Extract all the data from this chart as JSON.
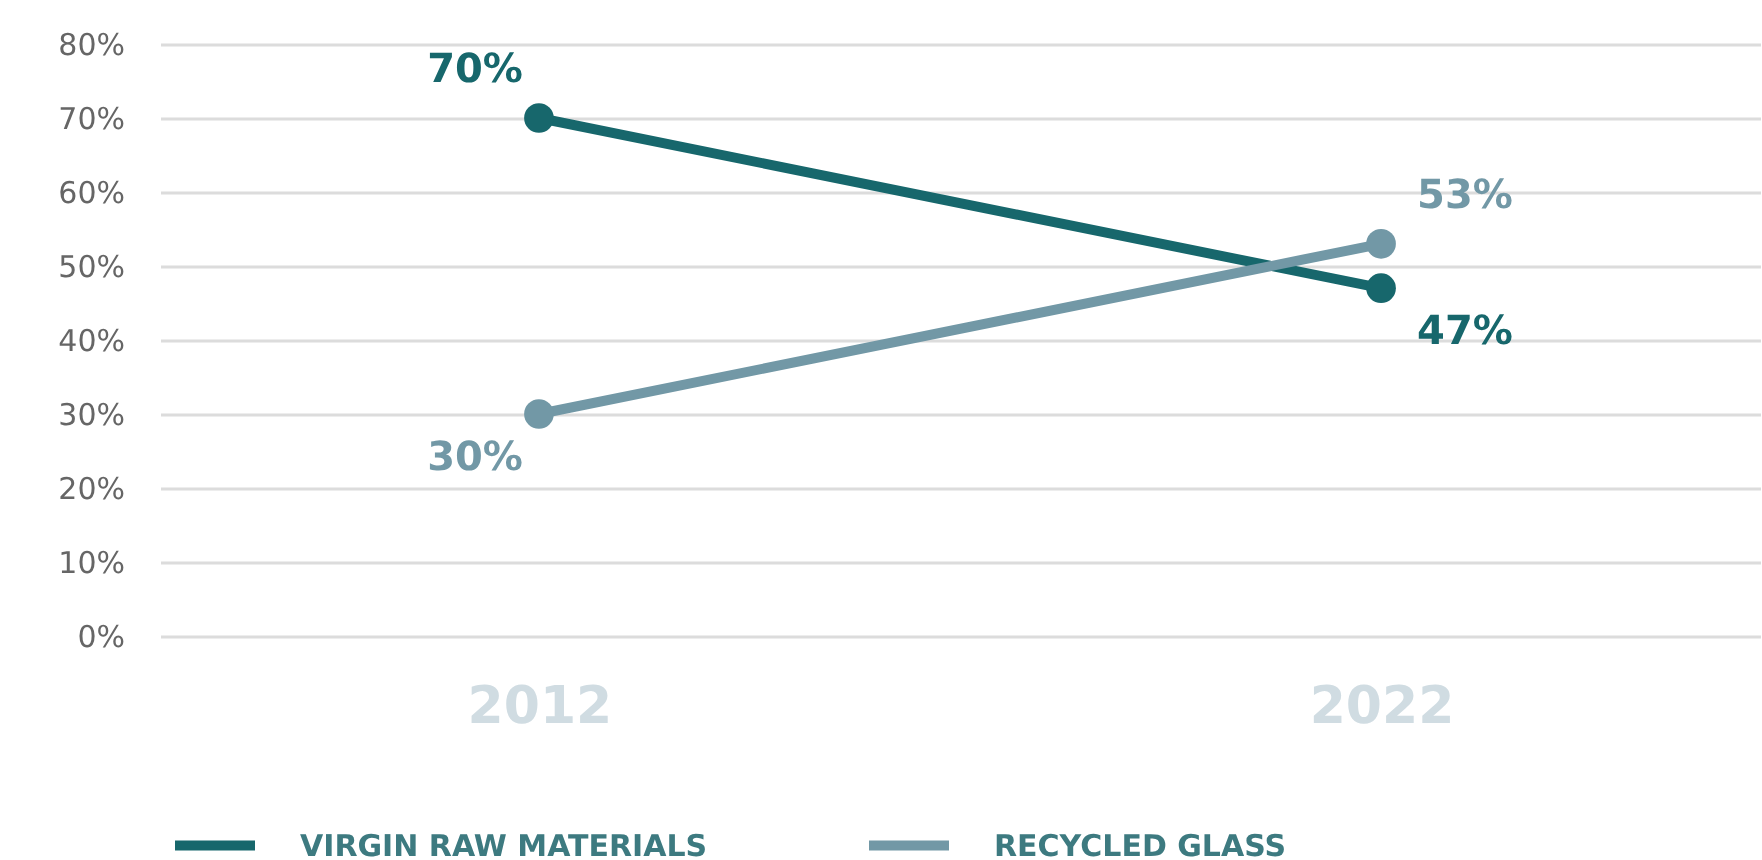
{
  "chart_data": {
    "type": "line",
    "categories": [
      "2012",
      "2022"
    ],
    "series": [
      {
        "name": "VIRGIN RAW MATERIALS",
        "color": "#17676c",
        "values": [
          70,
          47
        ],
        "value_labels": [
          "70%",
          "47%"
        ]
      },
      {
        "name": "RECYCLED GLASS",
        "color": "#7298a6",
        "values": [
          30,
          53
        ],
        "value_labels": [
          "30%",
          "53%"
        ]
      }
    ],
    "ylim": [
      0,
      80
    ],
    "yticks": [
      {
        "value": 0,
        "label": "0%"
      },
      {
        "value": 10,
        "label": "10%"
      },
      {
        "value": 20,
        "label": "20%"
      },
      {
        "value": 30,
        "label": "30%"
      },
      {
        "value": 40,
        "label": "40%"
      },
      {
        "value": 50,
        "label": "50%"
      },
      {
        "value": 60,
        "label": "60%"
      },
      {
        "value": 70,
        "label": "70%"
      },
      {
        "value": 80,
        "label": "80%"
      }
    ],
    "grid": "y",
    "legend": "bottom left",
    "marker": "circle",
    "line_style": "solid"
  }
}
